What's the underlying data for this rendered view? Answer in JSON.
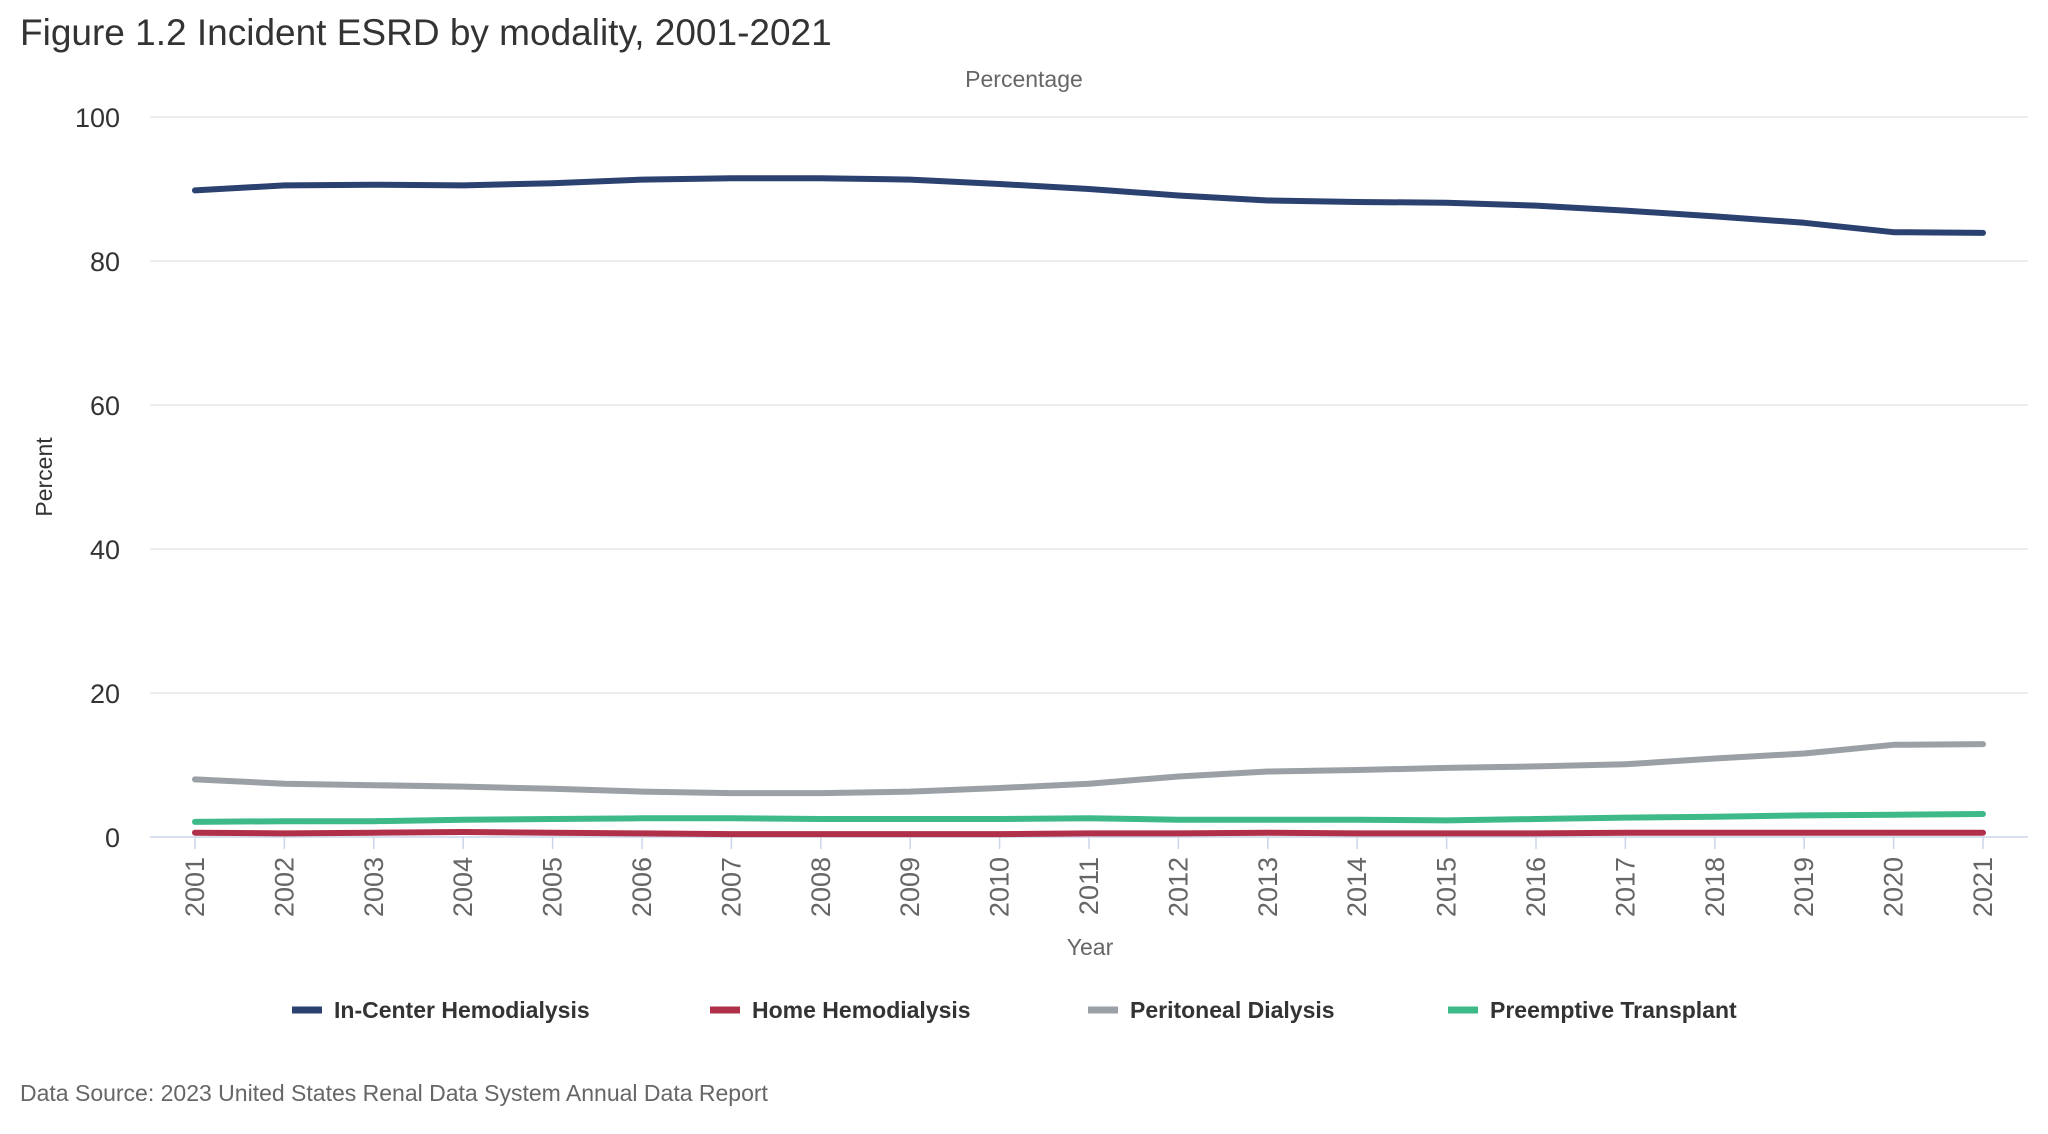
{
  "chart_data": {
    "type": "line",
    "title": "Figure 1.2 Incident ESRD by modality, 2001-2021",
    "subtitle": "Percentage",
    "xlabel": "Year",
    "ylabel": "Percent",
    "x": [
      "2001",
      "2002",
      "2003",
      "2004",
      "2005",
      "2006",
      "2007",
      "2008",
      "2009",
      "2010",
      "2011",
      "2012",
      "2013",
      "2014",
      "2015",
      "2016",
      "2017",
      "2018",
      "2019",
      "2020",
      "2021"
    ],
    "ylim": [
      0,
      100
    ],
    "yticks": [
      "0",
      "20",
      "40",
      "60",
      "80",
      "100"
    ],
    "grid": true,
    "legend_position": "bottom",
    "series": [
      {
        "name": "In-Center Hemodialysis",
        "color": "#2b4170",
        "values": [
          89.8,
          90.5,
          90.6,
          90.5,
          90.8,
          91.3,
          91.5,
          91.5,
          91.3,
          90.7,
          90.0,
          89.1,
          88.4,
          88.2,
          88.1,
          87.7,
          87.0,
          86.2,
          85.3,
          84.0,
          83.9
        ]
      },
      {
        "name": "Home Hemodialysis",
        "color": "#b0304a",
        "values": [
          0.6,
          0.5,
          0.6,
          0.7,
          0.6,
          0.5,
          0.4,
          0.4,
          0.4,
          0.4,
          0.5,
          0.5,
          0.6,
          0.5,
          0.5,
          0.5,
          0.6,
          0.6,
          0.6,
          0.6,
          0.6
        ]
      },
      {
        "name": "Peritoneal Dialysis",
        "color": "#9aa0a6",
        "values": [
          8.0,
          7.4,
          7.2,
          7.0,
          6.7,
          6.3,
          6.1,
          6.1,
          6.3,
          6.8,
          7.4,
          8.4,
          9.1,
          9.3,
          9.6,
          9.8,
          10.1,
          10.9,
          11.6,
          12.8,
          12.9
        ]
      },
      {
        "name": "Preemptive Transplant",
        "color": "#3dba88",
        "values": [
          2.1,
          2.2,
          2.2,
          2.4,
          2.5,
          2.6,
          2.6,
          2.5,
          2.5,
          2.5,
          2.6,
          2.4,
          2.4,
          2.4,
          2.3,
          2.5,
          2.7,
          2.8,
          3.0,
          3.1,
          3.2
        ]
      }
    ]
  },
  "source_note": "Data Source: 2023 United States Renal Data System Annual Data Report"
}
